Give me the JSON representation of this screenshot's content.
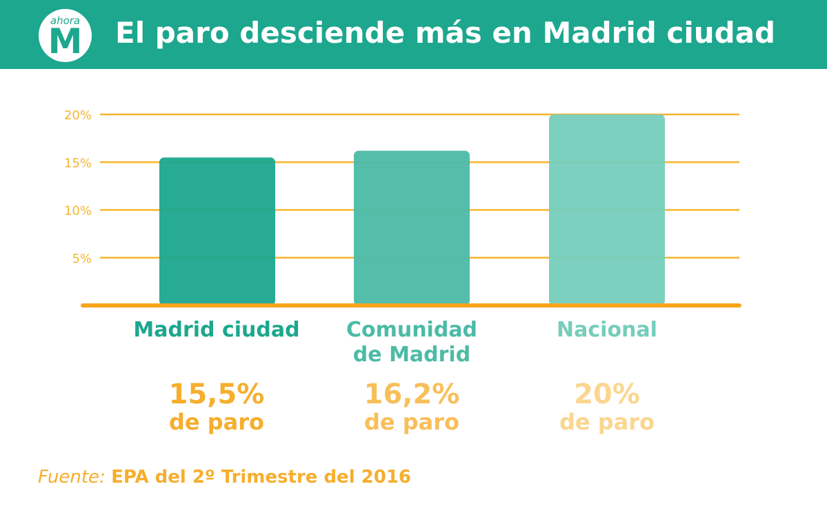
{
  "header": {
    "logo_small": "ahora",
    "logo_big": "M",
    "title": "El paro desciende más en Madrid ciudad"
  },
  "colors": {
    "header_bg": "#1ca78e",
    "grid": "#f6b52e",
    "text_orange": "#f6ae2d"
  },
  "chart_data": {
    "type": "bar",
    "categories": [
      "Madrid ciudad",
      "Comunidad de Madrid",
      "Nacional"
    ],
    "values": [
      15.5,
      16.2,
      20
    ],
    "ylim": [
      0,
      20
    ],
    "yticks": [
      {
        "value": 5,
        "label": "5%"
      },
      {
        "value": 10,
        "label": "10%"
      },
      {
        "value": 15,
        "label": "15%"
      },
      {
        "value": 20,
        "label": "20%"
      }
    ],
    "grid": true,
    "bar_colors": [
      "#1ca78e",
      "#4cbba6",
      "#76cdbc"
    ],
    "category_colors": [
      "#1ca78e",
      "#4cbba6",
      "#76cdbc"
    ],
    "value_labels": [
      "15,5%",
      "16,2%",
      "20%"
    ],
    "value_sublabels": [
      "de paro",
      "de paro",
      "de paro"
    ],
    "value_label_colors": [
      "#f6ae2d",
      "#f8bf59",
      "#fbd690"
    ]
  },
  "labels": {
    "cat0_line1": "Madrid ciudad",
    "cat1_line1": "Comunidad",
    "cat1_line2": "de Madrid",
    "cat2_line1": "Nacional"
  },
  "source": {
    "label": "Fuente:",
    "text": "EPA del 2º Trimestre del 2016"
  }
}
